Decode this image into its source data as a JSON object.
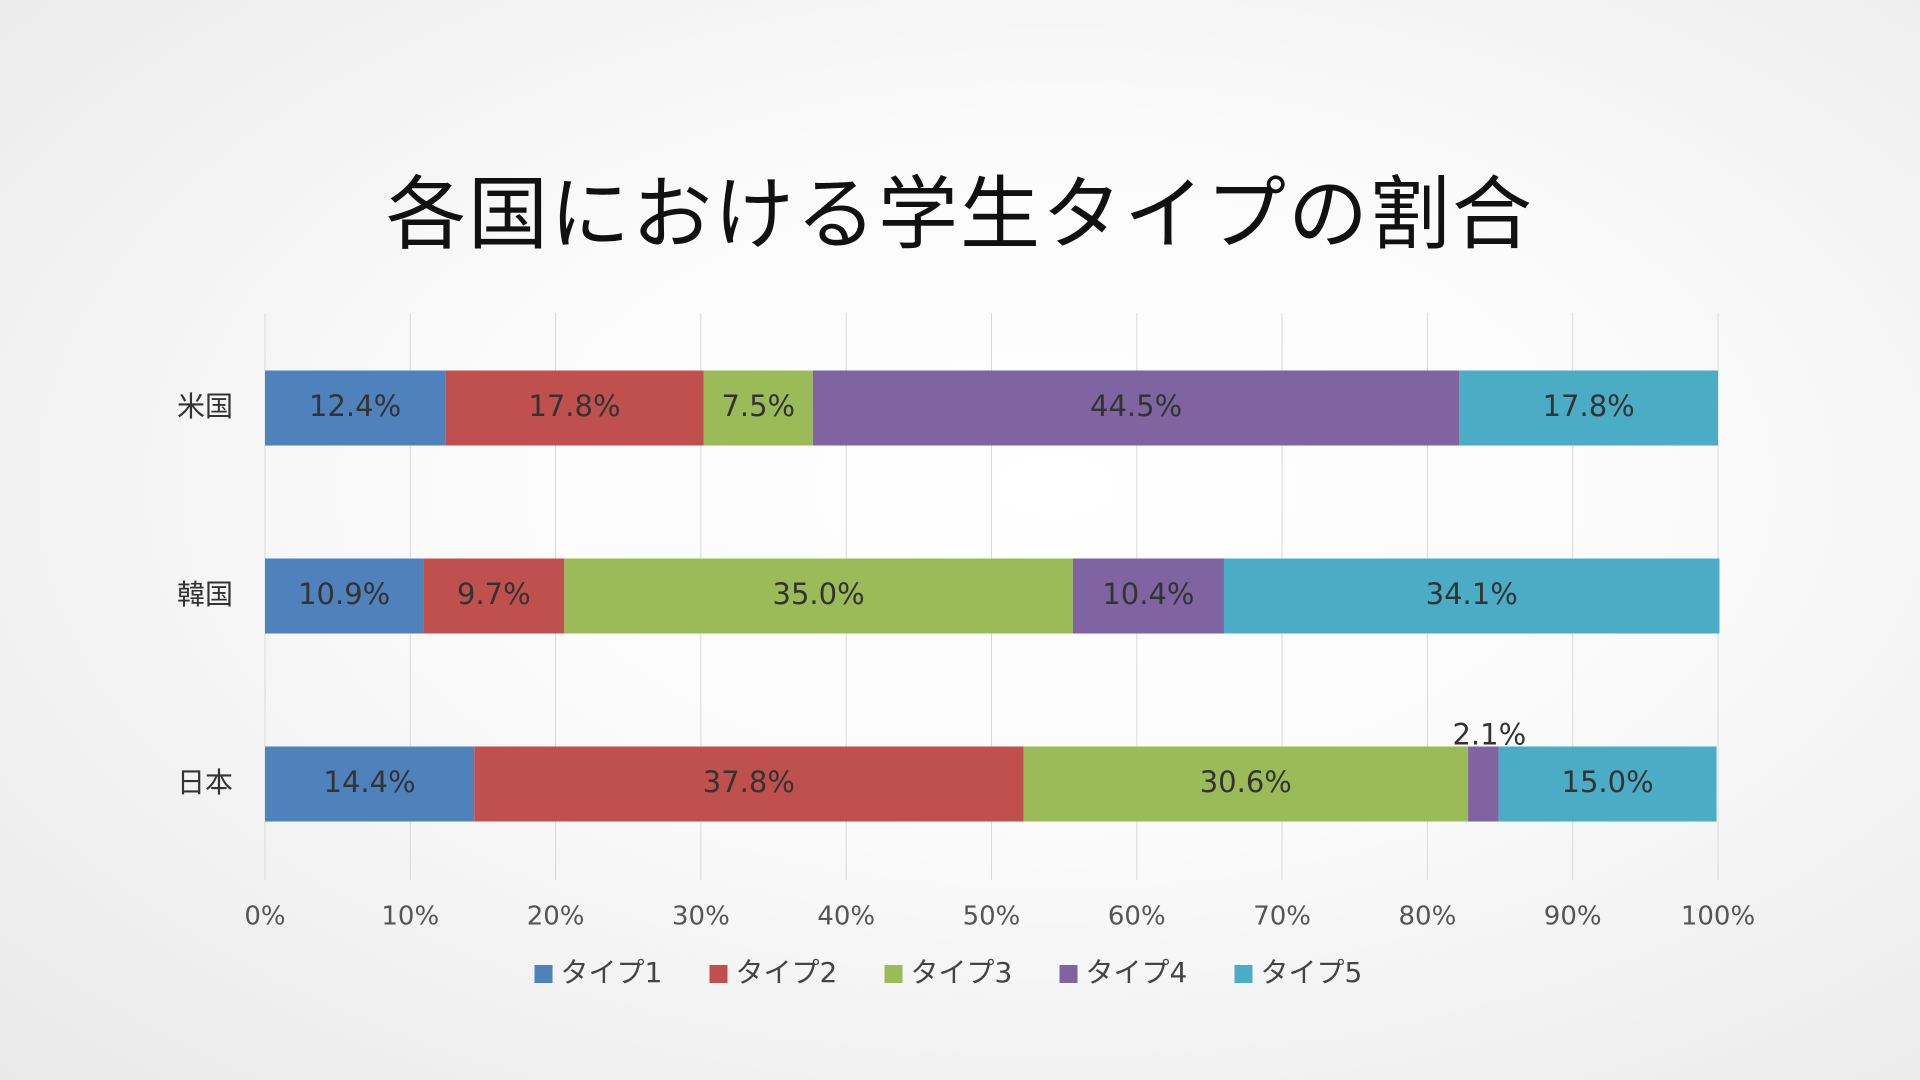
{
  "slide": {
    "title": "各国における学生タイプの割合"
  },
  "chart_data": {
    "type": "bar",
    "orientation": "horizontal",
    "stacked": "percent",
    "title": "",
    "xlabel": "",
    "ylabel": "",
    "xlim": [
      0,
      100
    ],
    "x_ticks": [
      "0%",
      "10%",
      "20%",
      "30%",
      "40%",
      "50%",
      "60%",
      "70%",
      "80%",
      "90%",
      "100%"
    ],
    "grid": "vertical",
    "legend_position": "bottom",
    "categories": [
      "米国",
      "韓国",
      "日本"
    ],
    "series": [
      {
        "name": "タイプ1",
        "color": "#4F81BD",
        "values": [
          12.4,
          10.9,
          14.4
        ],
        "labels": [
          "12.4%",
          "10.9%",
          "14.4%"
        ]
      },
      {
        "name": "タイプ2",
        "color": "#C0504D",
        "values": [
          17.8,
          9.7,
          37.8
        ],
        "labels": [
          "17.8%",
          "9.7%",
          "37.8%"
        ]
      },
      {
        "name": "タイプ3",
        "color": "#9BBB59",
        "values": [
          7.5,
          35.0,
          30.6
        ],
        "labels": [
          "7.5%",
          "35.0%",
          "30.6%"
        ]
      },
      {
        "name": "タイプ4",
        "color": "#8064A2",
        "values": [
          44.5,
          10.4,
          2.1
        ],
        "labels": [
          "44.5%",
          "10.4%",
          "2.1%"
        ]
      },
      {
        "name": "タイプ5",
        "color": "#4BACC6",
        "values": [
          17.8,
          34.1,
          15.0
        ],
        "labels": [
          "17.8%",
          "34.1%",
          "15.0%"
        ]
      }
    ]
  }
}
